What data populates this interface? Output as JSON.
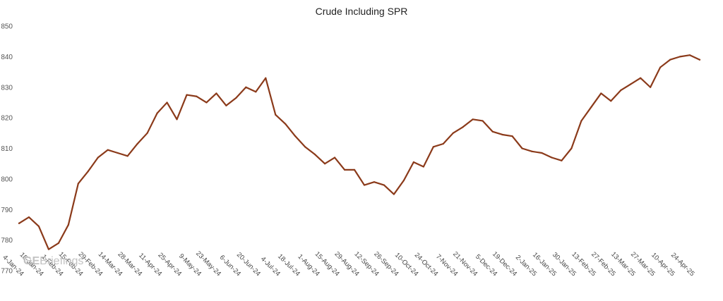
{
  "chart_data": {
    "type": "line",
    "title": "Crude Including SPR",
    "xlabel": "",
    "ylabel": "",
    "ylim": [
      770,
      850
    ],
    "yticks": [
      770,
      780,
      790,
      800,
      810,
      820,
      830,
      840,
      850
    ],
    "grid": false,
    "legend": "none",
    "line_color": "#8B3A1A",
    "watermark": {
      "bold": "GE",
      "rest": "Briefings"
    },
    "x_tick_labels": [
      "4-Jan-24",
      "18-Jan-24",
      "1-Feb-24",
      "15-Feb-24",
      "29-Feb-24",
      "14-Mar-24",
      "28-Mar-24",
      "11-Apr-24",
      "25-Apr-24",
      "9-May-24",
      "23-May-24",
      "6-Jun-24",
      "20-Jun-24",
      "4-Jul-24",
      "18-Jul-24",
      "1-Aug-24",
      "15-Aug-24",
      "29-Aug-24",
      "12-Sep-24",
      "26-Sep-24",
      "10-Oct-24",
      "24-Oct-24",
      "7-Nov-24",
      "21-Nov-24",
      "5-Dec-24",
      "19-Dec-24",
      "2-Jan-25",
      "16-Jan-25",
      "30-Jan-25",
      "13-Feb-25",
      "27-Feb-25",
      "13-Mar-25",
      "27-Mar-25",
      "10-Apr-25",
      "24-Apr-25"
    ],
    "series": [
      {
        "values": [
          785.5,
          787.5,
          784.5,
          777,
          779,
          785,
          798.5,
          802.5,
          807,
          809.5,
          808.5,
          807.5,
          811.5,
          815,
          821.5,
          825,
          819.5,
          827.5,
          827,
          825,
          828,
          824,
          826.5,
          830,
          828.5,
          833,
          821,
          818,
          814,
          810.5,
          808,
          805,
          807,
          803,
          803,
          798,
          799,
          798,
          795,
          799.5,
          805.5,
          804,
          810.5,
          811.5,
          815,
          817,
          819.5,
          819,
          815.5,
          814.5,
          814,
          810,
          809,
          808.5,
          807,
          806,
          810,
          819,
          823.5,
          828,
          825.5,
          829,
          831,
          833,
          830,
          836.5,
          839,
          840,
          840.5,
          839
        ]
      }
    ]
  }
}
